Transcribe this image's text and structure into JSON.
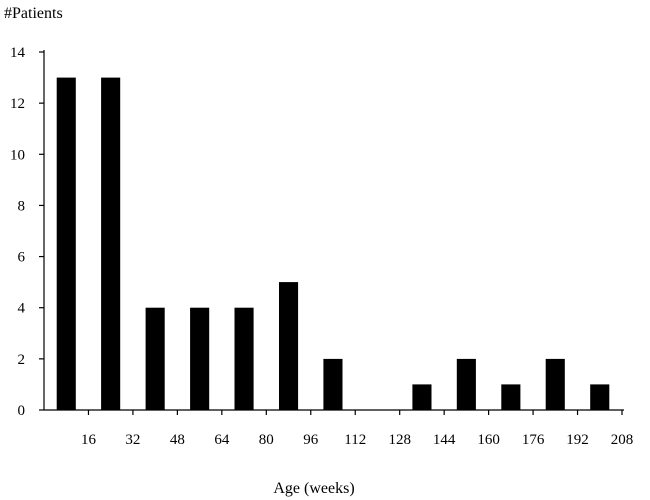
{
  "chart_data": {
    "type": "bar",
    "title": "",
    "ylabel": "#Patients",
    "xlabel": "Age (weeks)",
    "ylim": [
      0,
      14
    ],
    "yticks": [
      0,
      2,
      4,
      6,
      8,
      10,
      12,
      14
    ],
    "xlim": [
      0,
      208
    ],
    "xticks": [
      16,
      32,
      48,
      64,
      80,
      96,
      112,
      128,
      144,
      160,
      176,
      192,
      208
    ],
    "bin_width": 16,
    "categories": [
      "0-16",
      "16-32",
      "32-48",
      "48-64",
      "64-80",
      "80-96",
      "96-112",
      "112-128",
      "128-144",
      "144-160",
      "160-176",
      "176-192",
      "192-208"
    ],
    "values": [
      13,
      13,
      4,
      4,
      4,
      5,
      2,
      0,
      1,
      2,
      1,
      2,
      1
    ],
    "bar_color": "#000000",
    "grid": false,
    "legend": "none"
  }
}
